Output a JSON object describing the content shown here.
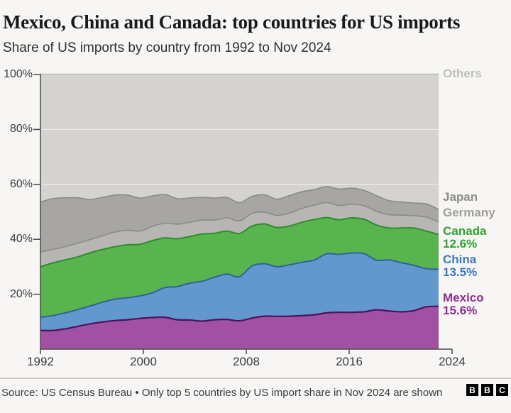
{
  "header": {
    "title": "Mexico, China and Canada: top countries for US imports",
    "subtitle": "Share of US imports by country from 1992 to Nov 2024"
  },
  "chart_data": {
    "type": "area",
    "stacked": true,
    "title": "Mexico, China and Canada: top countries for US imports",
    "subtitle": "Share of US imports by country from 1992 to Nov 2024",
    "unit": "%",
    "ylim": [
      0,
      100
    ],
    "grid": "horizontal",
    "legend_position": "right",
    "x": [
      1992,
      1993,
      1994,
      1995,
      1996,
      1997,
      1998,
      1999,
      2000,
      2001,
      2002,
      2003,
      2004,
      2005,
      2006,
      2007,
      2008,
      2009,
      2010,
      2011,
      2012,
      2013,
      2014,
      2015,
      2016,
      2017,
      2018,
      2019,
      2020,
      2021,
      2022,
      2023,
      2024
    ],
    "yticks": [
      {
        "value": 100,
        "label": "100%"
      },
      {
        "value": 80,
        "label": "80%"
      },
      {
        "value": 60,
        "label": "60%"
      },
      {
        "value": 40,
        "label": "40%"
      },
      {
        "value": 20,
        "label": "20%"
      }
    ],
    "xticks": [
      {
        "value": 1992,
        "label": "1992"
      },
      {
        "value": 2000,
        "label": "2000"
      },
      {
        "value": 2008,
        "label": "2008"
      },
      {
        "value": 2016,
        "label": "2016"
      },
      {
        "value": 2024,
        "label": "2024"
      }
    ],
    "series": [
      {
        "name": "mexico",
        "label": "Mexico",
        "end_value_label": "15.6%",
        "fill": "#a251a2",
        "stroke": "#4b1260",
        "stroke_width": 2.2,
        "legend_color": "#8c2d8f",
        "values": [
          6.8,
          6.8,
          7.4,
          8.3,
          9.2,
          9.9,
          10.4,
          10.7,
          11.2,
          11.5,
          11.6,
          10.7,
          10.6,
          10.2,
          10.7,
          10.8,
          10.3,
          11.3,
          12.0,
          11.9,
          12.0,
          12.2,
          12.5,
          13.2,
          13.4,
          13.4,
          13.6,
          14.3,
          13.9,
          13.6,
          14.0,
          15.4,
          15.6
        ]
      },
      {
        "name": "china",
        "label": "China",
        "end_value_label": "13.5%",
        "fill": "#6298ce",
        "stroke": "#2c639f",
        "stroke_width": 2.0,
        "legend_color": "#3a78bb",
        "values": [
          4.8,
          5.4,
          5.8,
          6.1,
          6.5,
          7.2,
          7.8,
          8.0,
          8.2,
          9.0,
          10.8,
          12.1,
          13.4,
          14.5,
          15.5,
          16.5,
          16.1,
          19.0,
          19.1,
          18.1,
          18.7,
          19.4,
          19.9,
          21.5,
          21.1,
          21.6,
          21.2,
          18.1,
          18.6,
          17.9,
          16.5,
          13.9,
          13.5
        ]
      },
      {
        "name": "canada",
        "label": "Canada",
        "end_value_label": "12.6%",
        "fill": "#58b54d",
        "stroke": "#2f8c2c",
        "stroke_width": 2.0,
        "legend_color": "#2fa22f",
        "values": [
          18.4,
          19.2,
          19.3,
          19.2,
          19.4,
          19.2,
          19.1,
          19.3,
          18.8,
          19.0,
          18.1,
          17.4,
          17.0,
          17.2,
          16.0,
          15.7,
          15.7,
          14.5,
          14.5,
          14.3,
          14.1,
          14.6,
          14.8,
          13.2,
          12.6,
          12.8,
          12.5,
          12.8,
          11.6,
          12.6,
          13.6,
          13.7,
          12.6
        ]
      },
      {
        "name": "germany",
        "label": "Germany",
        "fill": "#b7b6b4",
        "stroke": "#8b8a88",
        "stroke_width": 1.6,
        "legend_color": "#9f9e9c",
        "values": [
          5.4,
          4.9,
          4.8,
          5.0,
          4.8,
          5.0,
          5.4,
          5.3,
          4.8,
          5.2,
          5.4,
          5.3,
          5.2,
          5.1,
          4.8,
          4.8,
          4.6,
          4.6,
          4.3,
          4.4,
          4.7,
          5.0,
          5.2,
          5.5,
          5.2,
          5.0,
          4.9,
          5.0,
          4.9,
          4.7,
          4.5,
          5.1,
          4.6
        ]
      },
      {
        "name": "japan",
        "label": "Japan",
        "fill": "#a7a6a4",
        "stroke": "#8b8a88",
        "stroke_width": 1.6,
        "legend_color": "#8d8c8a",
        "values": [
          18.2,
          18.5,
          17.8,
          16.5,
          14.6,
          14.0,
          13.4,
          12.8,
          12.0,
          11.1,
          10.4,
          9.3,
          8.8,
          8.3,
          8.0,
          7.4,
          6.6,
          6.2,
          6.3,
          5.9,
          6.4,
          6.1,
          5.7,
          5.8,
          6.0,
          5.8,
          5.6,
          5.7,
          5.1,
          4.8,
          4.6,
          4.8,
          4.5
        ]
      }
    ],
    "others": {
      "name": "others",
      "label": "Others",
      "fill": "#d4d3d1",
      "legend_color": "#bfbebc"
    },
    "colors": {
      "axis": "#4a4a4a",
      "gridline": "rgba(255,255,255,0.55)",
      "top_line": "#bcbbb9",
      "tick_label": "#3d3d3d"
    }
  },
  "footer": {
    "source": "Source: US Census Bureau • Only top 5 countries by US import share in Nov 2024 are shown",
    "logo_letters": [
      "B",
      "B",
      "C"
    ]
  }
}
